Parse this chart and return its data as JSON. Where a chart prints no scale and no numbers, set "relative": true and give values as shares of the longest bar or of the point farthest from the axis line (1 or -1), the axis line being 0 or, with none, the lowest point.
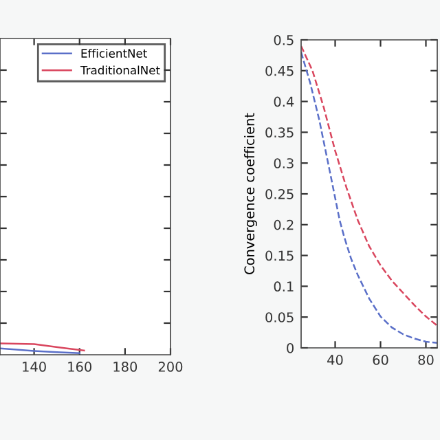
{
  "chart_data": [
    {
      "type": "line",
      "xlim": [
        125,
        200
      ],
      "xticks": [
        140,
        160,
        180,
        200
      ],
      "relative": true,
      "tick_labels": "x",
      "legend": "top right",
      "grid": false,
      "line_style": "solid",
      "series": [
        {
          "name": "EfficientNet",
          "color": "#5a6fc8",
          "x": [
            125,
            140,
            150,
            160
          ],
          "values": [
            0.57,
            0.34,
            0.23,
            0.14
          ]
        },
        {
          "name": "TraditionalNet",
          "color": "#d9465e",
          "x": [
            125,
            140,
            152,
            162
          ],
          "values": [
            1,
            0.94,
            0.63,
            0.37
          ]
        }
      ]
    },
    {
      "type": "line",
      "ylabel": "Convergence coefficient",
      "xlim": [
        25,
        85
      ],
      "xticks": [
        40,
        60,
        80
      ],
      "ylim": [
        0,
        0.5
      ],
      "yticks": [
        0,
        0.05,
        0.1,
        0.15,
        0.2,
        0.25,
        0.3,
        0.35,
        0.4,
        0.45,
        0.5
      ],
      "grid": false,
      "line_style": "dashed",
      "series": [
        {
          "color": "#5a6fc8",
          "x": [
            25,
            29,
            33,
            38,
            42,
            44,
            47,
            50,
            55,
            60,
            65,
            70,
            75,
            80,
            85
          ],
          "values": [
            0.48,
            0.43,
            0.37,
            0.28,
            0.207,
            0.18,
            0.145,
            0.118,
            0.08,
            0.051,
            0.033,
            0.022,
            0.015,
            0.01,
            0.008
          ]
        },
        {
          "color": "#d9465e",
          "x": [
            25,
            30,
            35,
            40,
            45,
            50,
            55,
            60,
            65,
            70,
            75,
            80,
            85
          ],
          "values": [
            0.49,
            0.45,
            0.39,
            0.32,
            0.26,
            0.207,
            0.165,
            0.134,
            0.109,
            0.089,
            0.069,
            0.051,
            0.036
          ]
        }
      ]
    }
  ]
}
